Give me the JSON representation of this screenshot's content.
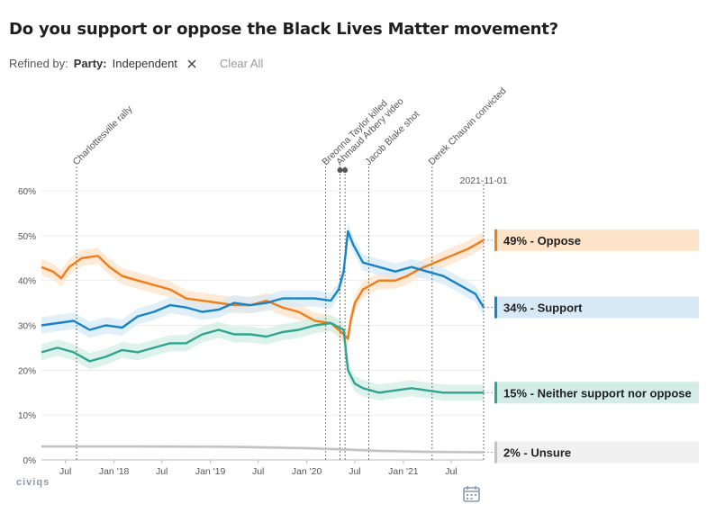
{
  "header": {
    "title": "Do you support or oppose the Black Lives Matter movement?",
    "refined_by": "Refined by:",
    "filter_label": "Party:",
    "filter_value": "Independent",
    "clear_all": "Clear All"
  },
  "footer": {
    "logo": "civiqs"
  },
  "chart_data": {
    "type": "line",
    "x_start": "2017-04-01",
    "x_end": "2021-11-01",
    "ylim": [
      0,
      60
    ],
    "yticks": [
      0,
      10,
      20,
      30,
      40,
      50,
      60
    ],
    "ytick_labels": [
      "0%",
      "10%",
      "20%",
      "30%",
      "40%",
      "50%",
      "60%"
    ],
    "xticks": [
      {
        "date": "2017-07-01",
        "label": "Jul"
      },
      {
        "date": "2018-01-01",
        "label": "Jan '18"
      },
      {
        "date": "2018-07-01",
        "label": "Jul"
      },
      {
        "date": "2019-01-01",
        "label": "Jan '19"
      },
      {
        "date": "2019-07-01",
        "label": "Jul"
      },
      {
        "date": "2020-01-01",
        "label": "Jan '20"
      },
      {
        "date": "2020-07-01",
        "label": "Jul"
      },
      {
        "date": "2021-01-01",
        "label": "Jan '21"
      },
      {
        "date": "2021-07-01",
        "label": "Jul"
      }
    ],
    "current_date_label": "2021-11-01",
    "annotations": [
      {
        "date": "2017-08-12",
        "label": "Charlottesville rally"
      },
      {
        "date": "2020-03-13",
        "label": "Breonna Taylor killed"
      },
      {
        "date": "2020-05-06",
        "label": "Ahmaud Arbery video"
      },
      {
        "date": "2020-05-25",
        "label": ""
      },
      {
        "date": "2020-08-23",
        "label": "Jacob Blake shot"
      },
      {
        "date": "2021-04-20",
        "label": "Derek Chauvin convicted"
      }
    ],
    "series": [
      {
        "name": "Oppose",
        "label": "49% - Oppose",
        "color": "#f07d1a",
        "band": "#fde3c8",
        "points": [
          [
            "2017-04-01",
            43
          ],
          [
            "2017-05-15",
            42
          ],
          [
            "2017-06-15",
            40.5
          ],
          [
            "2017-07-15",
            43
          ],
          [
            "2017-09-01",
            45
          ],
          [
            "2017-11-01",
            45.5
          ],
          [
            "2017-12-15",
            43
          ],
          [
            "2018-02-01",
            41
          ],
          [
            "2018-04-01",
            40
          ],
          [
            "2018-06-01",
            39
          ],
          [
            "2018-08-01",
            38
          ],
          [
            "2018-10-01",
            36
          ],
          [
            "2018-12-01",
            35.5
          ],
          [
            "2019-02-01",
            35
          ],
          [
            "2019-04-01",
            34.5
          ],
          [
            "2019-06-01",
            34.5
          ],
          [
            "2019-08-01",
            35.5
          ],
          [
            "2019-10-01",
            34
          ],
          [
            "2019-12-01",
            33
          ],
          [
            "2020-02-01",
            31
          ],
          [
            "2020-04-01",
            30.5
          ],
          [
            "2020-05-20",
            28
          ],
          [
            "2020-06-05",
            27
          ],
          [
            "2020-06-15",
            31
          ],
          [
            "2020-07-01",
            35
          ],
          [
            "2020-08-01",
            38
          ],
          [
            "2020-10-01",
            40
          ],
          [
            "2020-12-01",
            40
          ],
          [
            "2021-01-15",
            41
          ],
          [
            "2021-03-01",
            42.5
          ],
          [
            "2021-05-01",
            44
          ],
          [
            "2021-07-01",
            45.5
          ],
          [
            "2021-09-01",
            47
          ],
          [
            "2021-11-01",
            49
          ]
        ]
      },
      {
        "name": "Support",
        "label": "34% - Support",
        "color": "#1883c6",
        "band": "#d6e9f5",
        "points": [
          [
            "2017-04-01",
            30
          ],
          [
            "2017-06-01",
            30.5
          ],
          [
            "2017-08-01",
            31
          ],
          [
            "2017-10-01",
            29
          ],
          [
            "2017-12-01",
            30
          ],
          [
            "2018-02-01",
            29.5
          ],
          [
            "2018-04-01",
            32
          ],
          [
            "2018-06-01",
            33
          ],
          [
            "2018-08-01",
            34.5
          ],
          [
            "2018-10-01",
            34
          ],
          [
            "2018-12-01",
            33
          ],
          [
            "2019-02-01",
            33.5
          ],
          [
            "2019-04-01",
            35
          ],
          [
            "2019-06-01",
            34.5
          ],
          [
            "2019-08-01",
            35
          ],
          [
            "2019-10-01",
            36
          ],
          [
            "2019-12-01",
            36
          ],
          [
            "2020-02-01",
            36
          ],
          [
            "2020-04-01",
            35.5
          ],
          [
            "2020-05-01",
            38
          ],
          [
            "2020-05-20",
            42
          ],
          [
            "2020-06-05",
            51
          ],
          [
            "2020-06-25",
            48
          ],
          [
            "2020-08-01",
            44
          ],
          [
            "2020-10-01",
            43
          ],
          [
            "2020-12-01",
            42
          ],
          [
            "2021-02-01",
            43
          ],
          [
            "2021-04-01",
            42
          ],
          [
            "2021-06-01",
            41
          ],
          [
            "2021-08-01",
            39
          ],
          [
            "2021-10-01",
            37
          ],
          [
            "2021-11-01",
            34
          ]
        ]
      },
      {
        "name": "Neither support nor oppose",
        "label": "15% - Neither support nor oppose",
        "color": "#2fa58f",
        "band": "#d3ede6",
        "points": [
          [
            "2017-04-01",
            24
          ],
          [
            "2017-06-01",
            25
          ],
          [
            "2017-08-01",
            24
          ],
          [
            "2017-10-01",
            22
          ],
          [
            "2017-12-01",
            23
          ],
          [
            "2018-02-01",
            24.5
          ],
          [
            "2018-04-01",
            24
          ],
          [
            "2018-06-01",
            25
          ],
          [
            "2018-08-01",
            26
          ],
          [
            "2018-10-01",
            26
          ],
          [
            "2018-12-01",
            28
          ],
          [
            "2019-02-01",
            29
          ],
          [
            "2019-04-01",
            28
          ],
          [
            "2019-06-01",
            28
          ],
          [
            "2019-08-01",
            27.5
          ],
          [
            "2019-10-01",
            28.5
          ],
          [
            "2019-12-01",
            29
          ],
          [
            "2020-02-01",
            30
          ],
          [
            "2020-04-01",
            30.5
          ],
          [
            "2020-05-20",
            29
          ],
          [
            "2020-06-05",
            20
          ],
          [
            "2020-07-01",
            17
          ],
          [
            "2020-08-01",
            16
          ],
          [
            "2020-10-01",
            15
          ],
          [
            "2020-12-01",
            15.5
          ],
          [
            "2021-02-01",
            16
          ],
          [
            "2021-04-01",
            15.5
          ],
          [
            "2021-06-01",
            15
          ],
          [
            "2021-08-01",
            15
          ],
          [
            "2021-11-01",
            15
          ]
        ]
      },
      {
        "name": "Unsure",
        "label": "2% - Unsure",
        "color": "#c2c2c2",
        "band": "#f0f0f0",
        "points": [
          [
            "2017-04-01",
            3
          ],
          [
            "2018-04-01",
            3
          ],
          [
            "2019-04-01",
            2.9
          ],
          [
            "2020-01-01",
            2.6
          ],
          [
            "2020-06-01",
            2.3
          ],
          [
            "2020-10-01",
            2
          ],
          [
            "2021-04-01",
            1.8
          ],
          [
            "2021-11-01",
            1.7
          ]
        ]
      }
    ]
  }
}
